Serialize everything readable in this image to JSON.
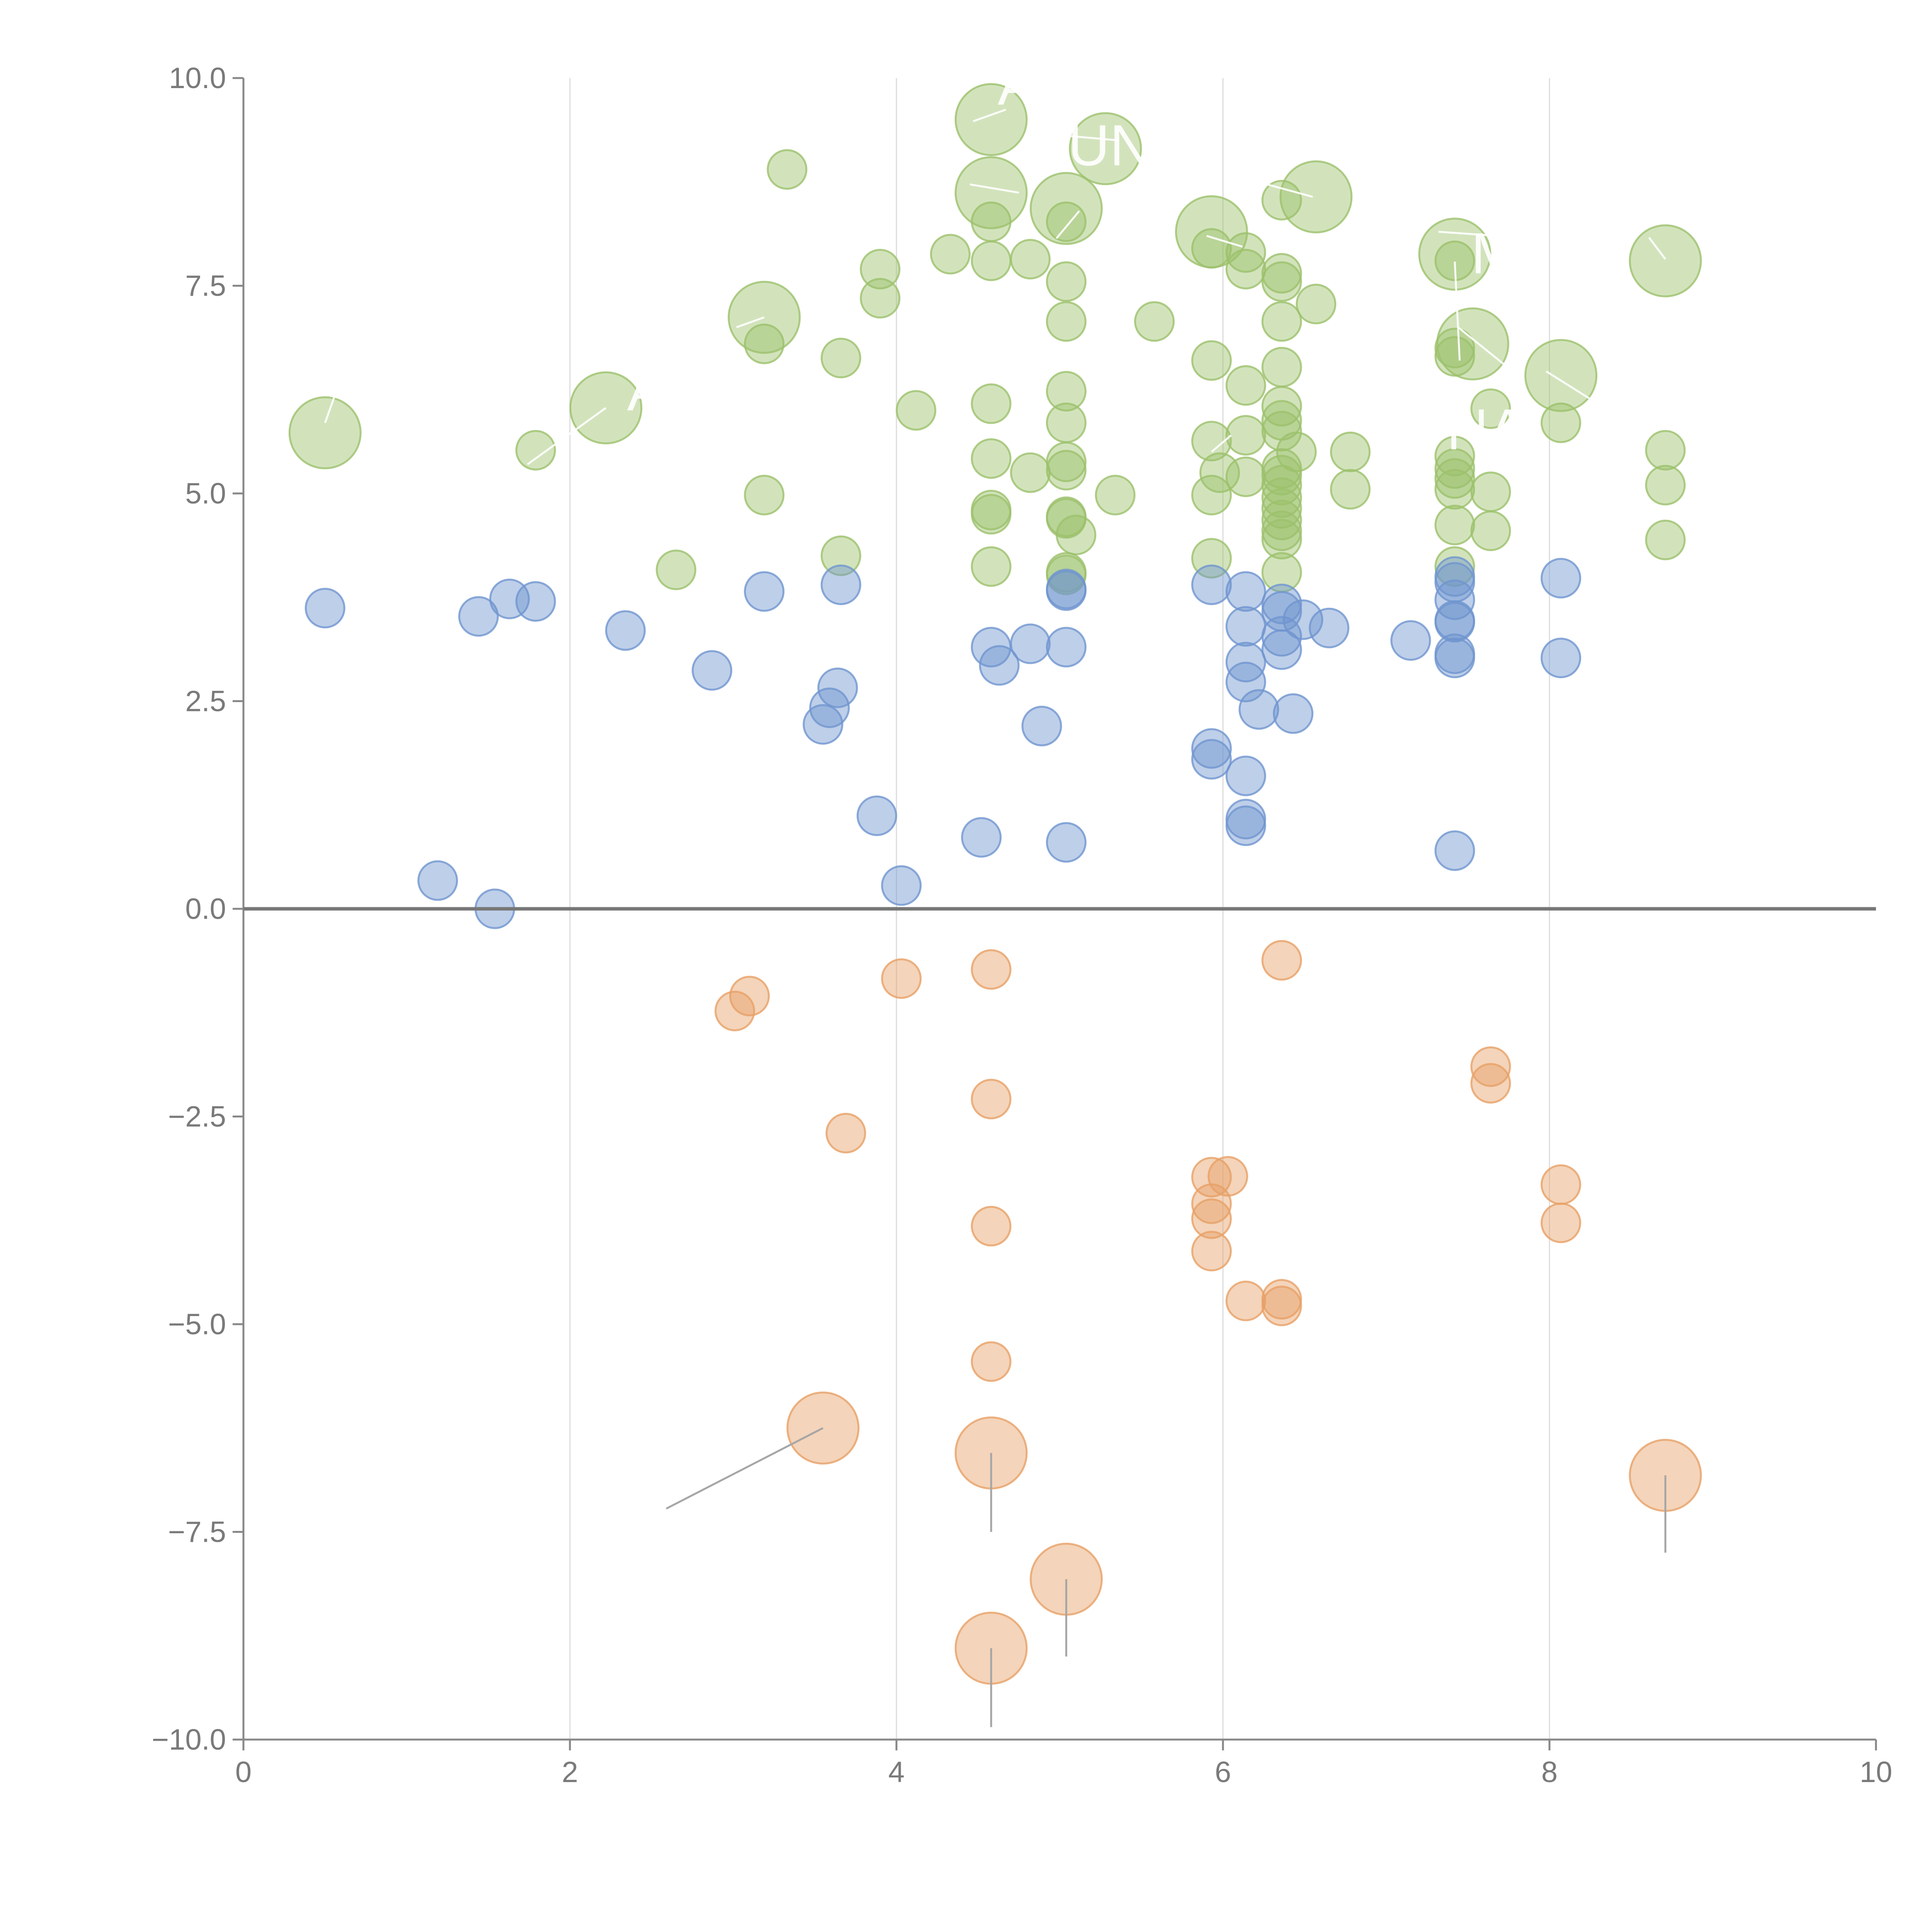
{
  "chart_data": {
    "type": "scatter",
    "title": "",
    "xlabel": "",
    "ylabel": "",
    "xlim": [
      0,
      10
    ],
    "ylim": [
      -10,
      10
    ],
    "x_ticks": [
      "0",
      "2",
      "4",
      "6",
      "8",
      "10"
    ],
    "y_ticks": [
      "10.0",
      "7.5",
      "5.0",
      "2.5",
      "0.0",
      "−2.5",
      "−5.0",
      "−7.5",
      "−10.0"
    ],
    "grid": "vertical",
    "zero_line": true,
    "colors": {
      "green": "#9cc06b",
      "blue": "#6f95cf",
      "orange": "#e7a067",
      "leader_white": "#ffffff",
      "leader_gray": "#a6a6a6"
    },
    "series": [
      {
        "name": "green",
        "color": "#9cc06b",
        "points": [
          [
            3.33,
            8.9
          ],
          [
            3.9,
            7.7
          ],
          [
            3.9,
            7.35
          ],
          [
            4.33,
            7.88
          ],
          [
            4.58,
            8.27
          ],
          [
            4.58,
            7.8
          ],
          [
            4.82,
            7.82
          ],
          [
            5.04,
            8.27
          ],
          [
            5.04,
            7.55
          ],
          [
            5.04,
            7.07
          ],
          [
            5.58,
            7.07
          ],
          [
            5.93,
            7.95
          ],
          [
            6.14,
            7.9
          ],
          [
            6.14,
            7.7
          ],
          [
            6.36,
            8.53
          ],
          [
            6.36,
            7.65
          ],
          [
            6.36,
            7.55
          ],
          [
            6.36,
            7.07
          ],
          [
            6.57,
            7.28
          ],
          [
            7.42,
            7.8
          ],
          [
            7.42,
            6.75
          ],
          [
            7.42,
            6.65
          ],
          [
            7.64,
            6.02
          ],
          [
            8.07,
            5.85
          ],
          [
            3.19,
            6.8
          ],
          [
            3.66,
            6.63
          ],
          [
            4.12,
            6.0
          ],
          [
            4.58,
            6.08
          ],
          [
            5.04,
            6.23
          ],
          [
            5.04,
            5.85
          ],
          [
            5.93,
            6.6
          ],
          [
            6.14,
            6.3
          ],
          [
            6.14,
            5.7
          ],
          [
            6.36,
            6.52
          ],
          [
            6.36,
            6.05
          ],
          [
            6.36,
            5.88
          ],
          [
            6.36,
            5.75
          ],
          [
            6.45,
            5.5
          ],
          [
            6.78,
            5.5
          ],
          [
            6.78,
            5.05
          ],
          [
            1.79,
            5.52
          ],
          [
            3.19,
            4.98
          ],
          [
            2.65,
            4.08
          ],
          [
            3.66,
            4.25
          ],
          [
            4.58,
            5.42
          ],
          [
            4.58,
            4.8
          ],
          [
            4.58,
            4.75
          ],
          [
            4.58,
            4.12
          ],
          [
            4.82,
            5.25
          ],
          [
            5.04,
            5.38
          ],
          [
            5.04,
            5.28
          ],
          [
            5.04,
            4.72
          ],
          [
            5.04,
            4.7
          ],
          [
            5.04,
            4.05
          ],
          [
            5.04,
            4.02
          ],
          [
            5.1,
            4.5
          ],
          [
            5.34,
            4.98
          ],
          [
            5.93,
            5.63
          ],
          [
            5.93,
            4.98
          ],
          [
            5.93,
            4.22
          ],
          [
            5.98,
            5.25
          ],
          [
            6.14,
            5.2
          ],
          [
            6.36,
            5.3
          ],
          [
            6.36,
            5.22
          ],
          [
            6.36,
            5.1
          ],
          [
            6.36,
            4.95
          ],
          [
            6.36,
            4.82
          ],
          [
            6.36,
            4.68
          ],
          [
            6.36,
            4.55
          ],
          [
            6.36,
            4.45
          ],
          [
            6.36,
            4.05
          ],
          [
            7.42,
            5.45
          ],
          [
            7.42,
            5.3
          ],
          [
            7.42,
            5.18
          ],
          [
            7.42,
            5.05
          ],
          [
            7.42,
            4.62
          ],
          [
            7.42,
            4.12
          ],
          [
            7.64,
            5.02
          ],
          [
            7.64,
            4.55
          ],
          [
            8.71,
            5.52
          ],
          [
            8.71,
            5.1
          ],
          [
            8.71,
            4.44
          ]
        ],
        "large_points": [
          [
            4.58,
            9.5
          ],
          [
            5.28,
            9.15
          ],
          [
            4.58,
            8.62
          ],
          [
            5.04,
            8.43
          ],
          [
            6.57,
            8.57
          ],
          [
            5.93,
            8.15
          ],
          [
            7.42,
            7.88
          ],
          [
            8.71,
            7.8
          ],
          [
            3.19,
            7.12
          ],
          [
            7.53,
            6.8
          ],
          [
            8.07,
            6.42
          ],
          [
            2.22,
            6.03
          ],
          [
            0.5,
            5.73
          ]
        ]
      },
      {
        "name": "blue",
        "color": "#6f95cf",
        "points": [
          [
            0.5,
            3.62
          ],
          [
            1.44,
            3.52
          ],
          [
            1.63,
            3.73
          ],
          [
            1.79,
            3.7
          ],
          [
            2.34,
            3.35
          ],
          [
            2.87,
            2.87
          ],
          [
            3.19,
            3.82
          ],
          [
            3.55,
            2.22
          ],
          [
            3.59,
            2.42
          ],
          [
            3.64,
            2.66
          ],
          [
            3.66,
            3.9
          ],
          [
            3.88,
            1.12
          ],
          [
            4.03,
            0.28
          ],
          [
            4.52,
            0.86
          ],
          [
            4.58,
            3.15
          ],
          [
            4.63,
            2.93
          ],
          [
            4.82,
            3.19
          ],
          [
            4.89,
            2.2
          ],
          [
            5.04,
            3.15
          ],
          [
            5.04,
            3.85
          ],
          [
            5.04,
            3.83
          ],
          [
            5.04,
            0.8
          ],
          [
            5.93,
            3.9
          ],
          [
            5.93,
            1.93
          ],
          [
            5.93,
            1.8
          ],
          [
            6.14,
            3.82
          ],
          [
            6.14,
            3.4
          ],
          [
            6.14,
            2.97
          ],
          [
            6.14,
            2.73
          ],
          [
            6.14,
            1.6
          ],
          [
            6.14,
            1.08
          ],
          [
            6.14,
            1.0
          ],
          [
            6.22,
            2.4
          ],
          [
            6.36,
            3.67
          ],
          [
            6.36,
            3.58
          ],
          [
            6.36,
            3.28
          ],
          [
            6.36,
            3.12
          ],
          [
            6.43,
            2.35
          ],
          [
            6.49,
            3.48
          ],
          [
            6.65,
            3.38
          ],
          [
            7.15,
            3.23
          ],
          [
            7.42,
            4.0
          ],
          [
            7.42,
            3.93
          ],
          [
            7.42,
            3.72
          ],
          [
            7.42,
            3.47
          ],
          [
            7.42,
            3.45
          ],
          [
            7.42,
            3.07
          ],
          [
            7.42,
            3.02
          ],
          [
            7.42,
            0.7
          ],
          [
            8.07,
            3.98
          ],
          [
            8.07,
            3.02
          ],
          [
            1.19,
            0.34
          ],
          [
            1.54,
            0.0
          ]
        ],
        "large_points": []
      },
      {
        "name": "orange",
        "color": "#e7a067",
        "points": [
          [
            3.1,
            -1.05
          ],
          [
            3.01,
            -1.23
          ],
          [
            4.03,
            -0.84
          ],
          [
            4.58,
            -0.73
          ],
          [
            3.69,
            -2.7
          ],
          [
            4.58,
            -2.29
          ],
          [
            4.58,
            -3.82
          ],
          [
            4.58,
            -5.45
          ],
          [
            5.93,
            -3.23
          ],
          [
            5.93,
            -3.55
          ],
          [
            5.93,
            -3.73
          ],
          [
            5.93,
            -4.12
          ],
          [
            6.03,
            -3.22
          ],
          [
            6.14,
            -4.72
          ],
          [
            6.36,
            -4.7
          ],
          [
            6.36,
            -4.78
          ],
          [
            6.36,
            -0.62
          ],
          [
            7.64,
            -1.9
          ],
          [
            7.64,
            -2.1
          ],
          [
            8.07,
            -3.32
          ],
          [
            8.07,
            -3.78
          ]
        ],
        "large_points": [
          [
            3.55,
            -6.25
          ],
          [
            4.58,
            -6.55
          ],
          [
            5.04,
            -8.07
          ],
          [
            4.58,
            -8.9
          ],
          [
            8.71,
            -6.82
          ]
        ]
      }
    ],
    "labels": [
      {
        "text": "AL",
        "x": 4.62,
        "y": 9.68
      },
      {
        "text": "UN",
        "x": 5.05,
        "y": 8.95
      },
      {
        "text": "M",
        "x": 7.52,
        "y": 7.65
      },
      {
        "text": "NA",
        "x": 7.37,
        "y": 5.53
      },
      {
        "text": "A",
        "x": 2.35,
        "y": 6.0
      }
    ],
    "leaders": [
      {
        "color": "#ffffff",
        "x1": 4.47,
        "y1": 9.48,
        "x2": 4.67,
        "y2": 9.62
      },
      {
        "color": "#ffffff",
        "x1": 5.07,
        "y1": 9.3,
        "x2": 5.36,
        "y2": 9.25
      },
      {
        "color": "#ffffff",
        "x1": 4.45,
        "y1": 8.72,
        "x2": 4.75,
        "y2": 8.62
      },
      {
        "color": "#ffffff",
        "x1": 5.12,
        "y1": 8.4,
        "x2": 4.98,
        "y2": 8.07
      },
      {
        "color": "#ffffff",
        "x1": 6.27,
        "y1": 8.72,
        "x2": 6.55,
        "y2": 8.57
      },
      {
        "color": "#ffffff",
        "x1": 5.9,
        "y1": 8.1,
        "x2": 6.12,
        "y2": 7.97
      },
      {
        "color": "#ffffff",
        "x1": 7.32,
        "y1": 8.15,
        "x2": 7.68,
        "y2": 8.1
      },
      {
        "color": "#ffffff",
        "x1": 8.61,
        "y1": 8.08,
        "x2": 8.71,
        "y2": 7.82
      },
      {
        "color": "#ffffff",
        "x1": 3.02,
        "y1": 7.0,
        "x2": 3.19,
        "y2": 7.12
      },
      {
        "color": "#ffffff",
        "x1": 7.42,
        "y1": 7.79,
        "x2": 7.45,
        "y2": 6.6
      },
      {
        "color": "#ffffff",
        "x1": 7.44,
        "y1": 7.0,
        "x2": 7.8,
        "y2": 6.43
      },
      {
        "color": "#ffffff",
        "x1": 7.98,
        "y1": 6.47,
        "x2": 8.32,
        "y2": 6.05
      },
      {
        "color": "#ffffff",
        "x1": 1.74,
        "y1": 5.35,
        "x2": 2.22,
        "y2": 6.03
      },
      {
        "color": "#ffffff",
        "x1": 0.5,
        "y1": 5.85,
        "x2": 0.56,
        "y2": 6.18
      },
      {
        "color": "#ffffff",
        "x1": 4.66,
        "y1": 6.35,
        "x2": 4.92,
        "y2": 6.28
      },
      {
        "color": "#ffffff",
        "x1": 5.93,
        "y1": 5.5,
        "x2": 6.05,
        "y2": 5.7
      },
      {
        "color": "#a6a6a6",
        "x1": 2.59,
        "y1": -7.22,
        "x2": 3.55,
        "y2": -6.25
      },
      {
        "color": "#a6a6a6",
        "x1": 4.58,
        "y1": -6.55,
        "x2": 4.58,
        "y2": -7.5
      },
      {
        "color": "#a6a6a6",
        "x1": 5.04,
        "y1": -8.07,
        "x2": 5.04,
        "y2": -9.0
      },
      {
        "color": "#a6a6a6",
        "x1": 4.58,
        "y1": -8.9,
        "x2": 4.58,
        "y2": -9.85
      },
      {
        "color": "#a6a6a6",
        "x1": 8.71,
        "y1": -6.82,
        "x2": 8.71,
        "y2": -7.75
      }
    ]
  }
}
